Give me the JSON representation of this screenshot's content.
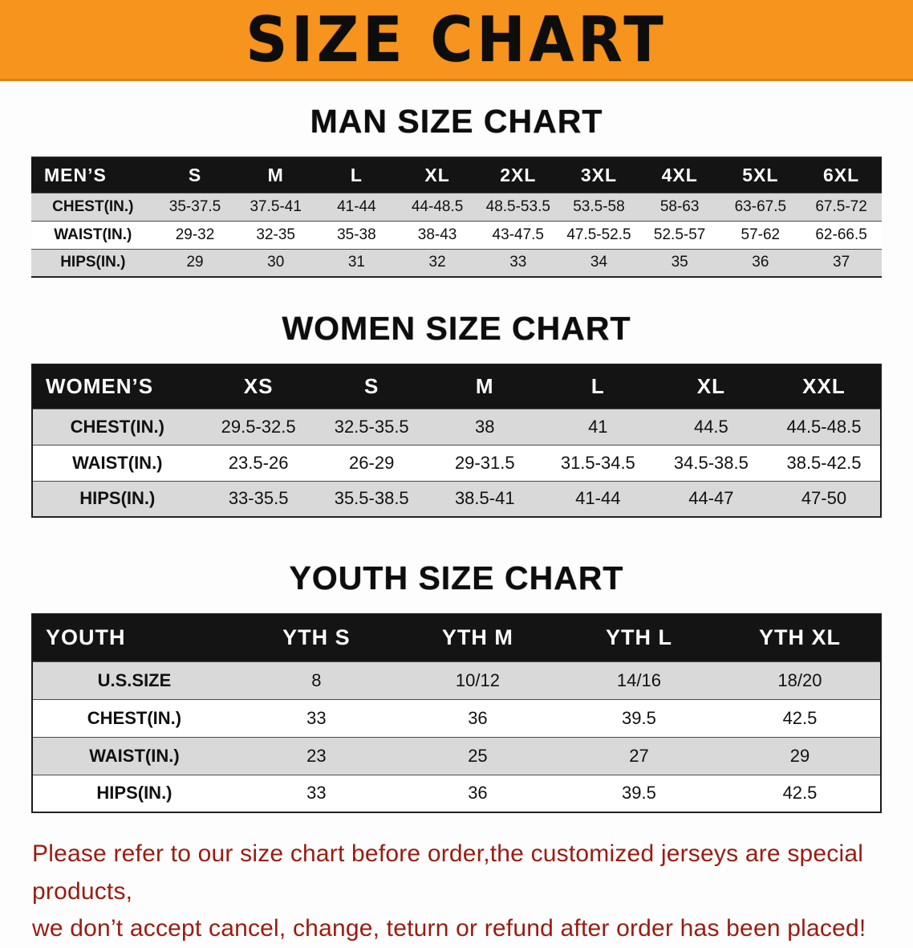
{
  "banner": {
    "title": "SIZE CHART",
    "background_color": "#f7941d"
  },
  "colors": {
    "banner_orange": "#f7941d",
    "table_header_black": "#141414",
    "shaded_row_gray": "#d9d9d9",
    "disclaimer_red": "#9b1b10"
  },
  "sections": [
    {
      "id": "men",
      "heading": "MAN SIZE CHART",
      "table": {
        "header": [
          "MEN’S",
          "S",
          "M",
          "L",
          "XL",
          "2XL",
          "3XL",
          "4XL",
          "5XL",
          "6XL"
        ],
        "rows": [
          [
            "CHEST(IN.)",
            "35-37.5",
            "37.5-41",
            "41-44",
            "44-48.5",
            "48.5-53.5",
            "53.5-58",
            "58-63",
            "63-67.5",
            "67.5-72"
          ],
          [
            "WAIST(IN.)",
            "29-32",
            "32-35",
            "35-38",
            "38-43",
            "43-47.5",
            "47.5-52.5",
            "52.5-57",
            "57-62",
            "62-66.5"
          ],
          [
            "HIPS(IN.)",
            "29",
            "30",
            "31",
            "32",
            "33",
            "34",
            "35",
            "36",
            "37"
          ]
        ]
      }
    },
    {
      "id": "women",
      "heading": "WOMEN SIZE CHART",
      "table": {
        "header": [
          "WOMEN’S",
          "XS",
          "S",
          "M",
          "L",
          "XL",
          "XXL"
        ],
        "rows": [
          [
            "CHEST(IN.)",
            "29.5-32.5",
            "32.5-35.5",
            "38",
            "41",
            "44.5",
            "44.5-48.5"
          ],
          [
            "WAIST(IN.)",
            "23.5-26",
            "26-29",
            "29-31.5",
            "31.5-34.5",
            "34.5-38.5",
            "38.5-42.5"
          ],
          [
            "HIPS(IN.)",
            "33-35.5",
            "35.5-38.5",
            "38.5-41",
            "41-44",
            "44-47",
            "47-50"
          ]
        ]
      }
    },
    {
      "id": "youth",
      "heading": "YOUTH SIZE CHART",
      "table": {
        "header": [
          "YOUTH",
          "YTH S",
          "YTH M",
          "YTH L",
          "YTH XL"
        ],
        "rows": [
          [
            "U.S.SIZE",
            "8",
            "10/12",
            "14/16",
            "18/20"
          ],
          [
            "CHEST(IN.)",
            "33",
            "36",
            "39.5",
            "42.5"
          ],
          [
            "WAIST(IN.)",
            "23",
            "25",
            "27",
            "29"
          ],
          [
            "HIPS(IN.)",
            "33",
            "36",
            "39.5",
            "42.5"
          ]
        ]
      }
    }
  ],
  "disclaimer": {
    "line1": "Please refer to our size chart before order,the customized jerseys are special products,",
    "line2": "we don’t accept cancel, change, teturn or refund after order has been placed!"
  }
}
